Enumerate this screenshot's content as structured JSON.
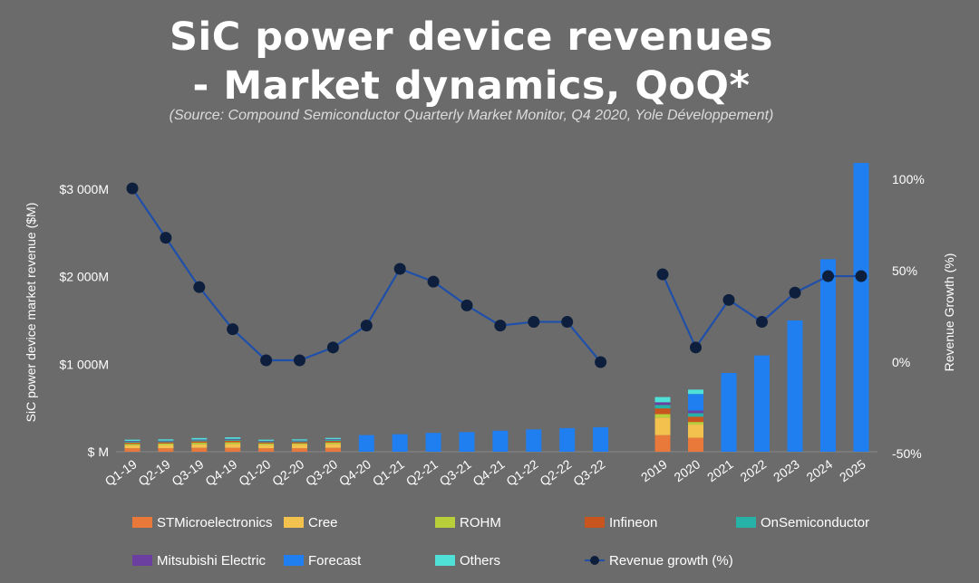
{
  "title_line1": "SiC power device revenues",
  "title_line2": "- Market dynamics, QoQ*",
  "subtitle": "(Source: Compound Semiconductor Quarterly Market Monitor, Q4 2020, Yole Développement)",
  "chart_data": {
    "type": "bar",
    "ylabel": "SiC power device market revenue ($M)",
    "y2label": "Revenue Growth (%)",
    "ylim": [
      0,
      3300
    ],
    "y2lim": [
      -50,
      110
    ],
    "y_ticks": [
      {
        "value": 0,
        "label": "$ M"
      },
      {
        "value": 1000,
        "label": "$1 000M"
      },
      {
        "value": 2000,
        "label": "$2 000M"
      },
      {
        "value": 3000,
        "label": "$3 000M"
      }
    ],
    "y2_ticks": [
      {
        "value": -50,
        "label": "-50%"
      },
      {
        "value": 0,
        "label": "0%"
      },
      {
        "value": 50,
        "label": "50%"
      },
      {
        "value": 100,
        "label": "100%"
      }
    ],
    "categories": [
      "Q1-19",
      "Q2-19",
      "Q3-19",
      "Q4-19",
      "Q1-20",
      "Q2-20",
      "Q3-20",
      "Q4-20",
      "Q1-21",
      "Q2-21",
      "Q3-21",
      "Q4-21",
      "Q1-22",
      "Q2-22",
      "Q3-22",
      "2019",
      "2020",
      "2021",
      "2022",
      "2023",
      "2024",
      "2025"
    ],
    "series": [
      {
        "name": "STMicroelectronics",
        "color": "#e8793a",
        "values": [
          40,
          40,
          45,
          45,
          40,
          40,
          45,
          0,
          0,
          0,
          0,
          0,
          0,
          0,
          0,
          190,
          160,
          0,
          0,
          0,
          0,
          0
        ]
      },
      {
        "name": "Cree",
        "color": "#f2c14e",
        "values": [
          35,
          38,
          40,
          45,
          40,
          42,
          45,
          0,
          0,
          0,
          0,
          0,
          0,
          0,
          0,
          200,
          150,
          0,
          0,
          0,
          0,
          0
        ]
      },
      {
        "name": "ROHM",
        "color": "#b9cf3a",
        "values": [
          15,
          16,
          18,
          18,
          14,
          14,
          16,
          0,
          0,
          0,
          0,
          0,
          0,
          0,
          0,
          40,
          30,
          0,
          0,
          0,
          0,
          0
        ]
      },
      {
        "name": "Infineon",
        "color": "#c8541e",
        "values": [
          15,
          15,
          16,
          18,
          14,
          15,
          17,
          0,
          0,
          0,
          0,
          0,
          0,
          0,
          0,
          65,
          60,
          0,
          0,
          0,
          0,
          0
        ]
      },
      {
        "name": "OnSemiconductor",
        "color": "#27b2a8",
        "values": [
          10,
          10,
          12,
          12,
          10,
          10,
          12,
          0,
          0,
          0,
          0,
          0,
          0,
          0,
          0,
          40,
          40,
          0,
          0,
          0,
          0,
          0
        ]
      },
      {
        "name": "Mitsubishi Electric",
        "color": "#6b3fa0",
        "values": [
          8,
          8,
          8,
          9,
          7,
          7,
          8,
          0,
          0,
          0,
          0,
          0,
          0,
          0,
          0,
          30,
          30,
          0,
          0,
          0,
          0,
          0
        ]
      },
      {
        "name": "Forecast",
        "color": "#1f7ff0",
        "values": [
          0,
          0,
          0,
          0,
          0,
          0,
          0,
          190,
          200,
          215,
          225,
          240,
          255,
          270,
          280,
          0,
          190,
          900,
          1100,
          1500,
          2200,
          3300
        ]
      },
      {
        "name": "Others",
        "color": "#4fe0d8",
        "values": [
          15,
          15,
          18,
          18,
          13,
          14,
          15,
          0,
          0,
          0,
          0,
          0,
          0,
          0,
          0,
          60,
          50,
          0,
          0,
          0,
          0,
          0
        ]
      }
    ],
    "growth_series": {
      "name": "Revenue growth (%)",
      "line_color": "#1f4fa8",
      "marker_color": "#0d1f3d",
      "segments": [
        {
          "categories": [
            "Q1-19",
            "Q2-19",
            "Q3-19",
            "Q4-19",
            "Q1-20",
            "Q2-20",
            "Q3-20",
            "Q4-20",
            "Q1-21",
            "Q2-21",
            "Q3-21",
            "Q4-21",
            "Q1-22",
            "Q2-22",
            "Q3-22"
          ],
          "values": [
            95,
            68,
            41,
            18,
            1,
            1,
            8,
            20,
            51,
            44,
            31,
            20,
            22,
            22,
            0
          ]
        },
        {
          "categories": [
            "2019",
            "2020",
            "2021",
            "2022",
            "2023",
            "2024",
            "2025"
          ],
          "values": [
            48,
            8,
            34,
            22,
            38,
            47,
            47
          ]
        }
      ]
    }
  },
  "legend": [
    {
      "label": "STMicroelectronics",
      "color": "#e8793a",
      "kind": "swatch"
    },
    {
      "label": "Cree",
      "color": "#f2c14e",
      "kind": "swatch"
    },
    {
      "label": "ROHM",
      "color": "#b9cf3a",
      "kind": "swatch"
    },
    {
      "label": "Infineon",
      "color": "#c8541e",
      "kind": "swatch"
    },
    {
      "label": "OnSemiconductor",
      "color": "#27b2a8",
      "kind": "swatch"
    },
    {
      "label": "Mitsubishi Electric",
      "color": "#6b3fa0",
      "kind": "swatch"
    },
    {
      "label": "Forecast",
      "color": "#1f7ff0",
      "kind": "swatch"
    },
    {
      "label": "Others",
      "color": "#4fe0d8",
      "kind": "swatch"
    },
    {
      "label": "Revenue growth (%)",
      "color": "#1f4fa8",
      "kind": "line"
    }
  ]
}
